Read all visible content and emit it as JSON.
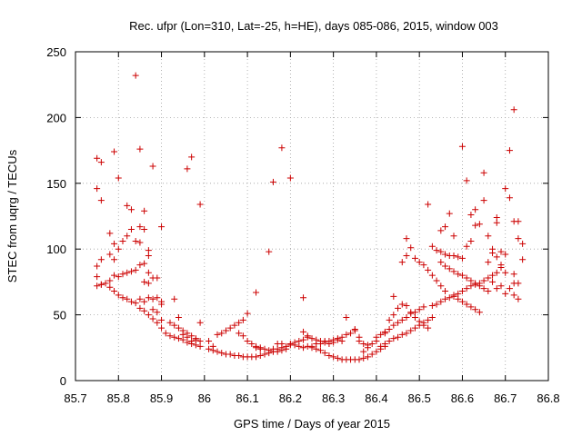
{
  "chart_data": {
    "type": "scatter",
    "title": "Rec. ufpr (Lon=310, Lat=-25, h=HE), days 085-086, 2015, window 003",
    "xlabel": "GPS time / Days of year 2015",
    "ylabel": "STEC from uqrg / TECUs",
    "xlim": [
      85.7,
      86.8
    ],
    "ylim": [
      0,
      250
    ],
    "xticks": [
      85.7,
      85.8,
      85.9,
      86.0,
      86.1,
      86.2,
      86.3,
      86.4,
      86.5,
      86.6,
      86.7,
      86.8
    ],
    "xtick_labels": [
      "85.7",
      "85.8",
      "85.9",
      "86",
      "86.1",
      "86.2",
      "86.3",
      "86.4",
      "86.5",
      "86.6",
      "86.7",
      "86.8"
    ],
    "yticks": [
      0,
      50,
      100,
      150,
      200,
      250
    ],
    "ytick_labels": [
      "0",
      "50",
      "100",
      "150",
      "200",
      "250"
    ],
    "grid": true,
    "marker": "+",
    "color": "#cc0000",
    "points": [
      [
        85.75,
        169
      ],
      [
        85.76,
        166
      ],
      [
        85.75,
        146
      ],
      [
        85.76,
        137
      ],
      [
        85.78,
        112
      ],
      [
        85.79,
        174
      ],
      [
        85.8,
        154
      ],
      [
        85.84,
        232
      ],
      [
        85.85,
        176
      ],
      [
        85.82,
        133
      ],
      [
        85.83,
        130
      ],
      [
        85.86,
        129
      ],
      [
        85.88,
        163
      ],
      [
        85.9,
        117
      ],
      [
        85.96,
        161
      ],
      [
        85.97,
        170
      ],
      [
        85.99,
        134
      ],
      [
        85.75,
        87
      ],
      [
        85.76,
        92
      ],
      [
        85.78,
        96
      ],
      [
        85.79,
        104
      ],
      [
        85.8,
        100
      ],
      [
        85.81,
        106
      ],
      [
        85.82,
        110
      ],
      [
        85.83,
        115
      ],
      [
        85.85,
        117
      ],
      [
        85.84,
        106
      ],
      [
        85.85,
        105
      ],
      [
        85.86,
        115
      ],
      [
        85.87,
        99
      ],
      [
        85.87,
        95
      ],
      [
        85.79,
        92
      ],
      [
        85.75,
        79
      ],
      [
        85.76,
        73
      ],
      [
        85.77,
        74
      ],
      [
        85.78,
        76
      ],
      [
        85.79,
        80
      ],
      [
        85.8,
        79
      ],
      [
        85.81,
        81
      ],
      [
        85.82,
        82
      ],
      [
        85.83,
        83
      ],
      [
        85.84,
        84
      ],
      [
        85.85,
        88
      ],
      [
        85.86,
        89
      ],
      [
        85.87,
        82
      ],
      [
        85.88,
        78
      ],
      [
        85.89,
        78
      ],
      [
        85.9,
        58
      ],
      [
        85.86,
        75
      ],
      [
        85.87,
        74
      ],
      [
        85.75,
        72
      ],
      [
        85.76,
        73
      ],
      [
        85.78,
        71
      ],
      [
        85.79,
        68
      ],
      [
        85.8,
        65
      ],
      [
        85.81,
        63
      ],
      [
        85.82,
        62
      ],
      [
        85.83,
        60
      ],
      [
        85.84,
        59
      ],
      [
        85.85,
        55
      ],
      [
        85.86,
        53
      ],
      [
        85.87,
        50
      ],
      [
        85.88,
        47
      ],
      [
        85.89,
        44
      ],
      [
        85.9,
        40
      ],
      [
        85.91,
        36
      ],
      [
        85.92,
        34
      ],
      [
        85.93,
        33
      ],
      [
        85.94,
        32
      ],
      [
        85.95,
        31
      ],
      [
        85.96,
        29
      ],
      [
        85.97,
        28
      ],
      [
        85.98,
        27
      ],
      [
        85.99,
        26
      ],
      [
        85.85,
        62
      ],
      [
        85.86,
        60
      ],
      [
        85.87,
        63
      ],
      [
        85.88,
        62
      ],
      [
        85.89,
        63
      ],
      [
        85.9,
        60
      ],
      [
        85.88,
        54
      ],
      [
        85.89,
        52
      ],
      [
        85.9,
        46
      ],
      [
        85.92,
        44
      ],
      [
        85.93,
        42
      ],
      [
        85.94,
        40
      ],
      [
        85.95,
        38
      ],
      [
        85.96,
        36
      ],
      [
        85.97,
        34
      ],
      [
        85.98,
        32
      ],
      [
        85.99,
        30
      ],
      [
        85.93,
        62
      ],
      [
        85.94,
        48
      ],
      [
        85.95,
        35
      ],
      [
        85.96,
        33
      ],
      [
        85.97,
        30
      ],
      [
        85.98,
        31
      ],
      [
        85.99,
        44
      ],
      [
        86.01,
        30
      ],
      [
        86.02,
        26
      ],
      [
        86.03,
        35
      ],
      [
        86.04,
        36
      ],
      [
        86.05,
        38
      ],
      [
        86.06,
        40
      ],
      [
        86.07,
        42
      ],
      [
        86.08,
        44
      ],
      [
        86.09,
        46
      ],
      [
        86.1,
        51
      ],
      [
        86.12,
        67
      ],
      [
        86.15,
        98
      ],
      [
        86.16,
        151
      ],
      [
        86.18,
        177
      ],
      [
        86.2,
        154
      ],
      [
        86.23,
        63
      ],
      [
        86.01,
        24
      ],
      [
        86.02,
        23
      ],
      [
        86.03,
        22
      ],
      [
        86.04,
        21
      ],
      [
        86.05,
        20
      ],
      [
        86.06,
        20
      ],
      [
        86.07,
        19
      ],
      [
        86.08,
        19
      ],
      [
        86.09,
        18
      ],
      [
        86.1,
        18
      ],
      [
        86.11,
        18
      ],
      [
        86.12,
        18
      ],
      [
        86.13,
        19
      ],
      [
        86.14,
        20
      ],
      [
        86.15,
        21
      ],
      [
        86.16,
        22
      ],
      [
        86.17,
        24
      ],
      [
        86.18,
        25
      ],
      [
        86.19,
        26
      ],
      [
        86.2,
        28
      ],
      [
        86.21,
        29
      ],
      [
        86.22,
        30
      ],
      [
        86.23,
        31
      ],
      [
        86.24,
        33
      ],
      [
        86.08,
        36
      ],
      [
        86.09,
        34
      ],
      [
        86.1,
        30
      ],
      [
        86.11,
        28
      ],
      [
        86.12,
        26
      ],
      [
        86.13,
        25
      ],
      [
        86.14,
        24
      ],
      [
        86.15,
        23
      ],
      [
        86.16,
        22
      ],
      [
        86.17,
        22
      ],
      [
        86.18,
        23
      ],
      [
        86.19,
        24
      ],
      [
        86.12,
        25
      ],
      [
        86.13,
        24
      ],
      [
        86.16,
        24
      ],
      [
        86.17,
        28
      ],
      [
        86.18,
        28
      ],
      [
        86.2,
        27
      ],
      [
        86.21,
        27
      ],
      [
        86.22,
        26
      ],
      [
        86.23,
        25
      ],
      [
        86.24,
        26
      ],
      [
        86.25,
        26
      ],
      [
        86.26,
        28
      ],
      [
        86.25,
        25
      ],
      [
        86.26,
        24
      ],
      [
        86.27,
        23
      ],
      [
        86.28,
        21
      ],
      [
        86.29,
        19
      ],
      [
        86.3,
        18
      ],
      [
        86.31,
        17
      ],
      [
        86.32,
        16
      ],
      [
        86.33,
        16
      ],
      [
        86.34,
        16
      ],
      [
        86.35,
        16
      ],
      [
        86.36,
        16
      ],
      [
        86.37,
        17
      ],
      [
        86.38,
        18
      ],
      [
        86.39,
        20
      ],
      [
        86.4,
        22
      ],
      [
        86.41,
        24
      ],
      [
        86.42,
        26
      ],
      [
        86.23,
        37
      ],
      [
        86.24,
        34
      ],
      [
        86.25,
        32
      ],
      [
        86.26,
        31
      ],
      [
        86.27,
        30
      ],
      [
        86.28,
        30
      ],
      [
        86.29,
        30
      ],
      [
        86.3,
        31
      ],
      [
        86.31,
        32
      ],
      [
        86.32,
        33
      ],
      [
        86.33,
        35
      ],
      [
        86.34,
        36
      ],
      [
        86.35,
        38
      ],
      [
        86.36,
        30
      ],
      [
        86.37,
        28
      ],
      [
        86.38,
        27
      ],
      [
        86.39,
        28
      ],
      [
        86.4,
        30
      ],
      [
        86.27,
        28
      ],
      [
        86.28,
        29
      ],
      [
        86.29,
        28
      ],
      [
        86.3,
        29
      ],
      [
        86.31,
        31
      ],
      [
        86.32,
        30
      ],
      [
        86.33,
        48
      ],
      [
        86.35,
        39
      ],
      [
        86.36,
        33
      ],
      [
        86.37,
        22
      ],
      [
        86.38,
        25
      ],
      [
        86.41,
        26
      ],
      [
        86.4,
        33
      ],
      [
        86.41,
        35
      ],
      [
        86.42,
        37
      ],
      [
        86.43,
        39
      ],
      [
        86.44,
        42
      ],
      [
        86.45,
        44
      ],
      [
        86.46,
        46
      ],
      [
        86.47,
        48
      ],
      [
        86.48,
        51
      ],
      [
        86.49,
        52
      ],
      [
        86.5,
        54
      ],
      [
        86.51,
        56
      ],
      [
        86.42,
        28
      ],
      [
        86.43,
        30
      ],
      [
        86.44,
        32
      ],
      [
        86.45,
        33
      ],
      [
        86.46,
        35
      ],
      [
        86.47,
        36
      ],
      [
        86.48,
        38
      ],
      [
        86.49,
        40
      ],
      [
        86.5,
        42
      ],
      [
        86.51,
        44
      ],
      [
        86.52,
        46
      ],
      [
        86.53,
        48
      ],
      [
        86.42,
        36
      ],
      [
        86.43,
        46
      ],
      [
        86.44,
        50
      ],
      [
        86.44,
        64
      ],
      [
        86.45,
        55
      ],
      [
        86.46,
        58
      ],
      [
        86.47,
        57
      ],
      [
        86.48,
        52
      ],
      [
        86.49,
        48
      ],
      [
        86.5,
        45
      ],
      [
        86.51,
        42
      ],
      [
        86.52,
        40
      ],
      [
        86.46,
        90
      ],
      [
        86.47,
        95
      ],
      [
        86.47,
        108
      ],
      [
        86.48,
        101
      ],
      [
        86.49,
        93
      ],
      [
        86.5,
        90
      ],
      [
        86.51,
        88
      ],
      [
        86.52,
        84
      ],
      [
        86.53,
        80
      ],
      [
        86.54,
        76
      ],
      [
        86.55,
        72
      ],
      [
        86.56,
        68
      ],
      [
        86.52,
        134
      ],
      [
        86.55,
        114
      ],
      [
        86.56,
        117
      ],
      [
        86.57,
        127
      ],
      [
        86.58,
        110
      ],
      [
        86.6,
        178
      ],
      [
        86.61,
        152
      ],
      [
        86.62,
        126
      ],
      [
        86.63,
        130
      ],
      [
        86.65,
        158
      ],
      [
        86.68,
        124
      ],
      [
        86.7,
        146
      ],
      [
        86.71,
        175
      ],
      [
        86.72,
        206
      ],
      [
        86.71,
        139
      ],
      [
        86.72,
        121
      ],
      [
        86.73,
        121
      ],
      [
        86.53,
        102
      ],
      [
        86.54,
        99
      ],
      [
        86.55,
        98
      ],
      [
        86.56,
        96
      ],
      [
        86.57,
        95
      ],
      [
        86.58,
        95
      ],
      [
        86.59,
        94
      ],
      [
        86.6,
        93
      ],
      [
        86.61,
        102
      ],
      [
        86.62,
        106
      ],
      [
        86.63,
        118
      ],
      [
        86.64,
        119
      ],
      [
        86.65,
        137
      ],
      [
        86.66,
        110
      ],
      [
        86.67,
        100
      ],
      [
        86.68,
        120
      ],
      [
        86.69,
        98
      ],
      [
        86.7,
        96
      ],
      [
        86.55,
        90
      ],
      [
        86.56,
        87
      ],
      [
        86.57,
        85
      ],
      [
        86.58,
        83
      ],
      [
        86.59,
        81
      ],
      [
        86.6,
        80
      ],
      [
        86.61,
        78
      ],
      [
        86.62,
        76
      ],
      [
        86.63,
        74
      ],
      [
        86.64,
        72
      ],
      [
        86.65,
        70
      ],
      [
        86.66,
        68
      ],
      [
        86.58,
        65
      ],
      [
        86.59,
        66
      ],
      [
        86.6,
        68
      ],
      [
        86.61,
        70
      ],
      [
        86.62,
        72
      ],
      [
        86.63,
        73
      ],
      [
        86.64,
        74
      ],
      [
        86.65,
        76
      ],
      [
        86.66,
        78
      ],
      [
        86.67,
        80
      ],
      [
        86.68,
        82
      ],
      [
        86.69,
        86
      ],
      [
        86.53,
        57
      ],
      [
        86.54,
        58
      ],
      [
        86.55,
        60
      ],
      [
        86.56,
        62
      ],
      [
        86.57,
        63
      ],
      [
        86.58,
        64
      ],
      [
        86.59,
        62
      ],
      [
        86.6,
        60
      ],
      [
        86.61,
        58
      ],
      [
        86.62,
        56
      ],
      [
        86.63,
        54
      ],
      [
        86.64,
        52
      ],
      [
        86.66,
        90
      ],
      [
        86.67,
        97
      ],
      [
        86.68,
        94
      ],
      [
        86.69,
        88
      ],
      [
        86.7,
        82
      ],
      [
        86.71,
        70
      ],
      [
        86.72,
        65
      ],
      [
        86.73,
        62
      ],
      [
        86.72,
        74
      ],
      [
        86.73,
        74
      ],
      [
        86.74,
        104
      ],
      [
        86.73,
        108
      ],
      [
        86.74,
        92
      ],
      [
        86.72,
        81
      ],
      [
        86.7,
        66
      ],
      [
        86.69,
        72
      ],
      [
        86.68,
        70
      ],
      [
        86.67,
        75
      ]
    ]
  }
}
